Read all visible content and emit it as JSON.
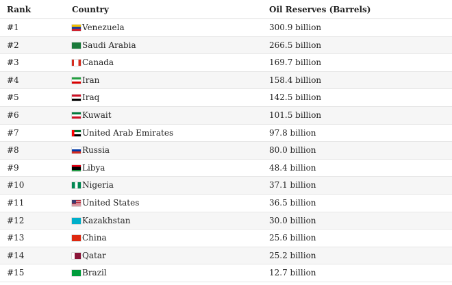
{
  "table": {
    "header": [
      "Rank",
      "Country",
      "Oil Reserves (Barrels)"
    ],
    "rows": [
      [
        "#1",
        "Venezuela",
        "300.9 billion"
      ],
      [
        "#2",
        "Saudi Arabia",
        "266.5 billion"
      ],
      [
        "#3",
        "Canada",
        "169.7 billion"
      ],
      [
        "#4",
        "Iran",
        "158.4 billion"
      ],
      [
        "#5",
        "Iraq",
        "142.5 billion"
      ],
      [
        "#6",
        "Kuwait",
        "101.5 billion"
      ],
      [
        "#7",
        "United Arab Emirates",
        "97.8 billion"
      ],
      [
        "#8",
        "Russia",
        "80.0 billion"
      ],
      [
        "#9",
        "Libya",
        "48.4 billion"
      ],
      [
        "#10",
        "Nigeria",
        "37.1 billion"
      ],
      [
        "#11",
        "United States",
        "36.5 billion"
      ],
      [
        "#12",
        "Kazakhstan",
        "30.0 billion"
      ],
      [
        "#13",
        "China",
        "25.6 billion"
      ],
      [
        "#14",
        "Qatar",
        "25.2 billion"
      ],
      [
        "#15",
        "Brazil",
        "12.7 billion"
      ]
    ]
  }
}
